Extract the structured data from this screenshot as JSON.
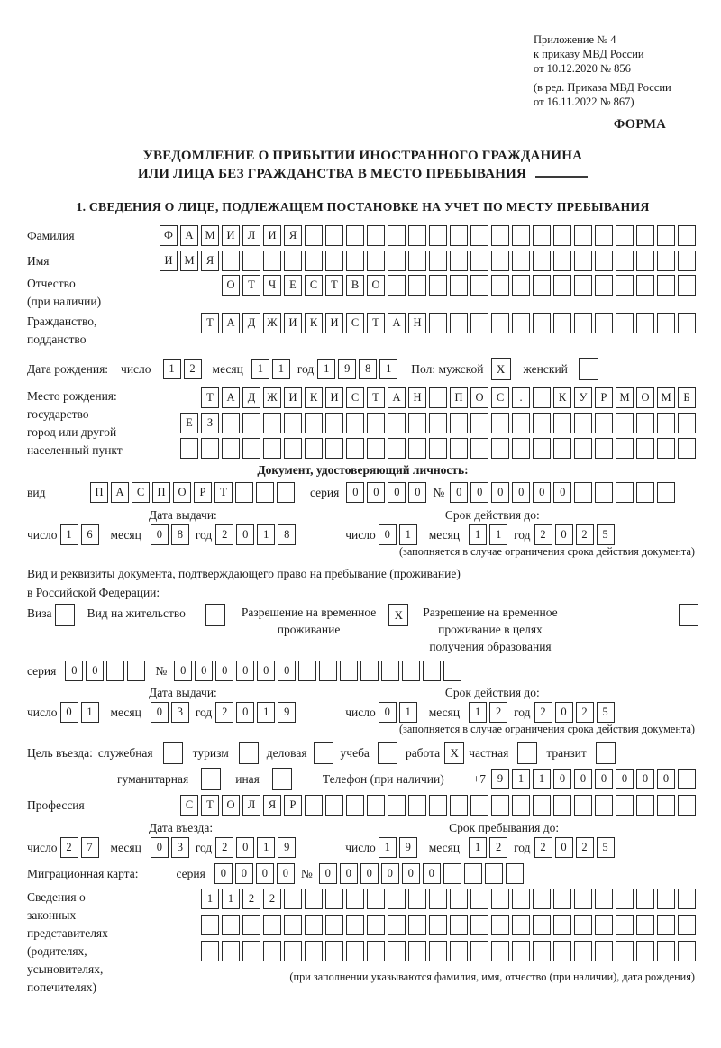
{
  "header": {
    "appendix_line1": "Приложение № 4",
    "appendix_line2": "к приказу МВД России",
    "appendix_line3": "от 10.12.2020 № 856",
    "revision_line1": "(в ред. Приказа МВД России",
    "revision_line2": "от 16.11.2022 № 867)",
    "form_label": "ФОРМА"
  },
  "title": {
    "line1": "УВЕДОМЛЕНИЕ О ПРИБЫТИИ ИНОСТРАННОГО ГРАЖДАНИНА",
    "line2": "ИЛИ ЛИЦА БЕЗ ГРАЖДАНСТВА В МЕСТО ПРЕБЫВАНИЯ"
  },
  "section1_heading": "1. СВЕДЕНИЯ О ЛИЦЕ, ПОДЛЕЖАЩЕМ ПОСТАНОВКЕ НА УЧЕТ ПО МЕСТУ ПРЕБЫВАНИЯ",
  "fields": {
    "surname": {
      "label": "Фамилия",
      "boxes": {
        "n": 26,
        "v": "ФАМИЛИЯ"
      }
    },
    "given_name": {
      "label": "Имя",
      "boxes": {
        "n": 26,
        "v": "ИМЯ"
      }
    },
    "patronymic": {
      "label1": "Отчество",
      "label2": "(при наличии)",
      "boxes": {
        "n": 23,
        "v": "ОТЧЕСТВО"
      }
    },
    "citizenship": {
      "label1": "Гражданство,",
      "label2": "подданство",
      "boxes": {
        "n": 24,
        "v": "ТАДЖИКИСТАН"
      }
    },
    "birth_date": {
      "label": "Дата рождения:",
      "day_label": "число",
      "day": {
        "n": 2,
        "v": "12"
      },
      "month_label": "месяц",
      "month": {
        "n": 2,
        "v": "11"
      },
      "year_label": "год",
      "year": {
        "n": 4,
        "v": "1981"
      },
      "sex_label": "Пол: мужской",
      "male_mark": "X",
      "female_label": "женский",
      "female_mark": ""
    },
    "birth_place": {
      "label_line1": "Место рождения:",
      "label_line2": "государство",
      "label_line3": "город или другой",
      "label_line4": "населенный пункт",
      "row1": {
        "n": 24,
        "v": "ТАДЖИКИСТАН ПОС. КУРМОМБ"
      },
      "row2": {
        "n": 25,
        "v": "ЕЗ"
      },
      "row3": {
        "n": 25,
        "v": ""
      }
    },
    "identity_doc": {
      "heading": "Документ, удостоверяющий личность:",
      "kind_label": "вид",
      "kind": {
        "n": 10,
        "v": "ПАСПОРТ"
      },
      "series_label": "серия",
      "series": {
        "n": 4,
        "v": "0000"
      },
      "number_label": "№",
      "number": {
        "n": 11,
        "v": "000000"
      },
      "issue_label": "Дата выдачи:",
      "issue_day_label": "число",
      "issue_day": {
        "n": 2,
        "v": "16"
      },
      "issue_month_label": "месяц",
      "issue_month": {
        "n": 2,
        "v": "08"
      },
      "issue_year_label": "год",
      "issue_year": {
        "n": 4,
        "v": "2018"
      },
      "valid_label": "Срок действия до:",
      "valid_day_label": "число",
      "valid_day": {
        "n": 2,
        "v": "01"
      },
      "valid_month_label": "месяц",
      "valid_month": {
        "n": 2,
        "v": "11"
      },
      "valid_year_label": "год",
      "valid_year": {
        "n": 4,
        "v": "2025"
      },
      "note": "(заполняется в случае ограничения срока действия документа)"
    },
    "residence_doc": {
      "line1": "Вид и реквизиты документа, подтверждающего право на пребывание (проживание)",
      "line2": "в Российской Федерации:",
      "visa_label": "Виза",
      "visa_mark": "",
      "residence_permit_label": "Вид на жительство",
      "residence_permit_mark": "",
      "temp_permit_label1": "Разрешение на временное",
      "temp_permit_label2": "проживание",
      "temp_permit_mark": "X",
      "edu_permit_label1": "Разрешение на временное",
      "edu_permit_label2": "проживание в целях",
      "edu_permit_label3": "получения образования",
      "edu_permit_mark": "",
      "series_label": "серия",
      "series": {
        "n": 4,
        "v": "00"
      },
      "number_label": "№",
      "number": {
        "n": 14,
        "v": "000000"
      },
      "issue_label": "Дата выдачи:",
      "issue_day_label": "число",
      "issue_day": {
        "n": 2,
        "v": "01"
      },
      "issue_month_label": "месяц",
      "issue_month": {
        "n": 2,
        "v": "03"
      },
      "issue_year_label": "год",
      "issue_year": {
        "n": 4,
        "v": "2019"
      },
      "valid_label": "Срок действия до:",
      "valid_day_label": "число",
      "valid_day": {
        "n": 2,
        "v": "01"
      },
      "valid_month_label": "месяц",
      "valid_month": {
        "n": 2,
        "v": "12"
      },
      "valid_year_label": "год",
      "valid_year": {
        "n": 4,
        "v": "2025"
      },
      "note": "(заполняется в случае ограничения срока действия документа)"
    },
    "visit_purpose": {
      "label": "Цель въезда:",
      "options_row1": [
        {
          "label": "служебная",
          "mark": ""
        },
        {
          "label": "туризм",
          "mark": ""
        },
        {
          "label": "деловая",
          "mark": ""
        },
        {
          "label": "учеба",
          "mark": ""
        },
        {
          "label": "работа",
          "mark": "X"
        },
        {
          "label": "частная",
          "mark": ""
        },
        {
          "label": "транзит",
          "mark": ""
        }
      ],
      "options_row2": [
        {
          "label": "гуманитарная",
          "mark": ""
        },
        {
          "label": "иная",
          "mark": ""
        }
      ],
      "phone_label": "Телефон (при наличии)",
      "phone_prefix": "+7",
      "phone": {
        "n": 10,
        "v": "911000000"
      }
    },
    "profession": {
      "label": "Профессия",
      "boxes": {
        "n": 25,
        "v": "СТОЛЯР"
      }
    },
    "entry": {
      "entry_label": "Дата въезда:",
      "entry_day_label": "число",
      "entry_day": {
        "n": 2,
        "v": "27"
      },
      "entry_month_label": "месяц",
      "entry_month": {
        "n": 2,
        "v": "03"
      },
      "entry_year_label": "год",
      "entry_year": {
        "n": 4,
        "v": "2019"
      },
      "stay_label": "Срок пребывания до:",
      "stay_day_label": "число",
      "stay_day": {
        "n": 2,
        "v": "19"
      },
      "stay_month_label": "месяц",
      "stay_month": {
        "n": 2,
        "v": "12"
      },
      "stay_year_label": "год",
      "stay_year": {
        "n": 4,
        "v": "2025"
      }
    },
    "migration_card": {
      "label": "Миграционная карта:",
      "series_label": "серия",
      "series": {
        "n": 4,
        "v": "0000"
      },
      "number_label": "№",
      "number": {
        "n": 10,
        "v": "000000"
      }
    },
    "legal_reps": {
      "label_line1": "Сведения о",
      "label_line2": "законных",
      "label_line3": "представителях",
      "label_line4": "(родителях,",
      "label_line5": "усыновителях,",
      "label_line6": "попечителях)",
      "row1": {
        "n": 24,
        "v": "1122"
      },
      "row2": {
        "n": 24,
        "v": ""
      },
      "row3": {
        "n": 24,
        "v": ""
      },
      "note": "(при заполнении указываются фамилия, имя, отчество (при наличии), дата рождения)"
    }
  }
}
